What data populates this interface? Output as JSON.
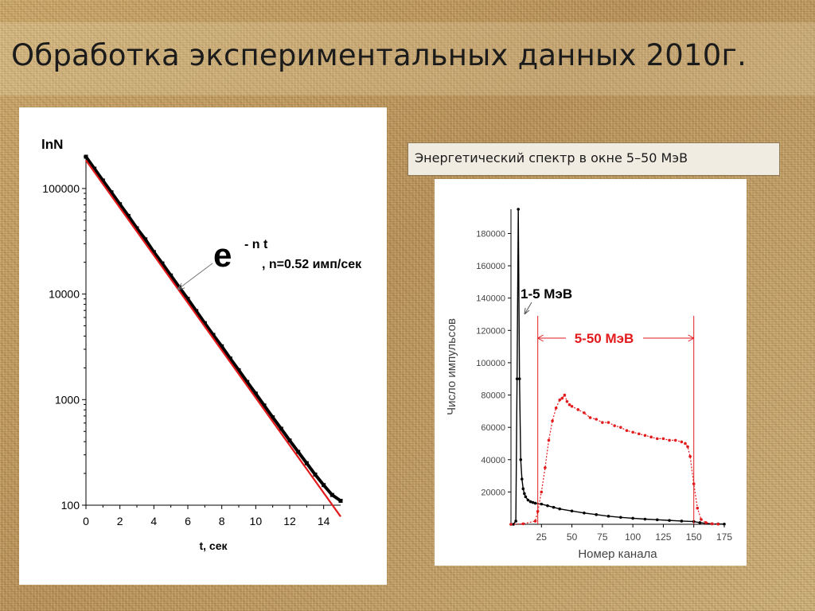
{
  "slide": {
    "title": "Обработка экспериментальных данных 2010г.",
    "caption": "Энергетический спектр в окне 5–50 МэВ"
  },
  "colors": {
    "fit_line": "#e31a1c",
    "data": "#000000",
    "window_marker": "#e31a1c"
  },
  "chart_data": [
    {
      "type": "scatter",
      "y_scale": "log",
      "xlabel": "t, сек",
      "ylabel": "lnN",
      "xlim": [
        0,
        15
      ],
      "ylim": [
        100,
        200000
      ],
      "x_ticks": [
        "0",
        "2",
        "4",
        "6",
        "8",
        "10",
        "12",
        "14"
      ],
      "y_ticks": [
        "100",
        "1000",
        "10000",
        "100000"
      ],
      "annotation": {
        "base": "e",
        "exponent": "- n t",
        "text": ", n=0.52 имп/сек"
      },
      "series": [
        {
          "role": "data",
          "color": "#000000",
          "x": [
            0,
            0.5,
            1,
            1.5,
            2,
            2.5,
            3,
            3.5,
            4,
            4.5,
            5,
            5.5,
            6,
            6.5,
            7,
            7.5,
            8,
            8.5,
            9,
            9.5,
            10,
            10.5,
            11,
            11.5,
            12,
            12.5,
            13,
            13.5,
            14,
            14.5,
            15
          ],
          "y": [
            200000,
            154000,
            119000,
            92000,
            71000,
            55000,
            42000,
            33000,
            25000,
            19500,
            15000,
            11600,
            9000,
            6900,
            5300,
            4100,
            3200,
            2450,
            1900,
            1470,
            1140,
            880,
            680,
            530,
            410,
            320,
            250,
            195,
            155,
            125,
            110
          ]
        },
        {
          "role": "fit",
          "color": "#e31a1c",
          "x": [
            0,
            15
          ],
          "y": [
            185000,
            78
          ]
        }
      ]
    },
    {
      "type": "scatter",
      "xlabel": "Номер канала",
      "ylabel": "Число импульсов",
      "xlim": [
        0,
        175
      ],
      "ylim": [
        0,
        195000
      ],
      "x_ticks": [
        "25",
        "50",
        "75",
        "100",
        "125",
        "150",
        "175"
      ],
      "y_ticks": [
        "20000",
        "40000",
        "60000",
        "80000",
        "100000",
        "120000",
        "140000",
        "160000",
        "180000"
      ],
      "annotations": [
        {
          "text": "1-5 МэВ",
          "color": "#000000"
        },
        {
          "text": "5-50 МэВ",
          "color": "#e31a1c",
          "x_range": [
            22,
            150
          ]
        }
      ],
      "series": [
        {
          "role": "full spectrum",
          "color": "#000000",
          "x": [
            0,
            2,
            4,
            5,
            6,
            7,
            8,
            9,
            10,
            11,
            12,
            14,
            16,
            18,
            20,
            25,
            30,
            35,
            40,
            50,
            60,
            70,
            80,
            90,
            100,
            110,
            120,
            130,
            140,
            150,
            155,
            160,
            165,
            170,
            175
          ],
          "y": [
            0,
            0,
            2000,
            90000,
            195000,
            90000,
            40000,
            28000,
            22000,
            19000,
            17000,
            15000,
            14000,
            13500,
            13000,
            12500,
            11500,
            10500,
            9500,
            8200,
            7000,
            6000,
            5000,
            4300,
            3700,
            3200,
            2800,
            2400,
            2000,
            1700,
            1000,
            600,
            300,
            200,
            100
          ]
        },
        {
          "role": "5-50 MeV window",
          "color": "#e31a1c",
          "x": [
            0,
            10,
            20,
            22,
            25,
            28,
            31,
            34,
            37,
            40,
            42,
            44,
            46,
            48,
            50,
            55,
            60,
            65,
            70,
            75,
            80,
            85,
            90,
            95,
            100,
            105,
            110,
            115,
            120,
            125,
            130,
            135,
            140,
            143,
            145,
            147,
            150,
            153,
            156,
            160,
            165,
            170
          ],
          "y": [
            0,
            300,
            2000,
            8000,
            20000,
            35000,
            52000,
            64000,
            72000,
            77000,
            78000,
            80000,
            76000,
            74000,
            73000,
            71000,
            69000,
            66000,
            65000,
            63000,
            63000,
            61000,
            60000,
            58000,
            57000,
            56000,
            55000,
            54000,
            53000,
            53000,
            52000,
            52000,
            51000,
            50000,
            48000,
            42000,
            25000,
            10000,
            3000,
            1000,
            300,
            100
          ]
        }
      ]
    }
  ]
}
